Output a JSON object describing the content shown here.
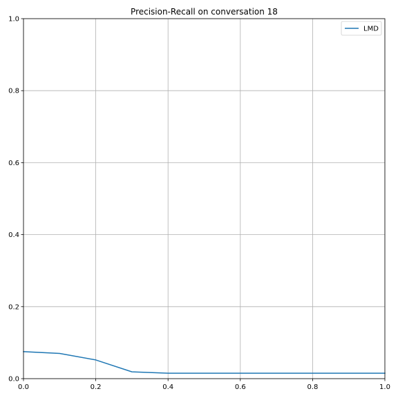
{
  "chart_data": {
    "type": "line",
    "title": "Precision-Recall on conversation 18",
    "xlabel": "",
    "ylabel": "",
    "xlim": [
      0.0,
      1.0
    ],
    "ylim": [
      0.0,
      1.0
    ],
    "grid": true,
    "legend_position": "top-right",
    "x_ticks": [
      "0.0",
      "0.2",
      "0.4",
      "0.6",
      "0.8",
      "1.0"
    ],
    "y_ticks": [
      "0.0",
      "0.2",
      "0.4",
      "0.6",
      "0.8",
      "1.0"
    ],
    "series": [
      {
        "name": "LMD",
        "color": "#1f77b4",
        "x": [
          0.0,
          0.1,
          0.2,
          0.3,
          0.4,
          0.5,
          0.6,
          0.7,
          0.8,
          0.9,
          1.0
        ],
        "y": [
          0.075,
          0.07,
          0.052,
          0.019,
          0.015,
          0.015,
          0.015,
          0.015,
          0.015,
          0.015,
          0.015
        ]
      }
    ]
  }
}
